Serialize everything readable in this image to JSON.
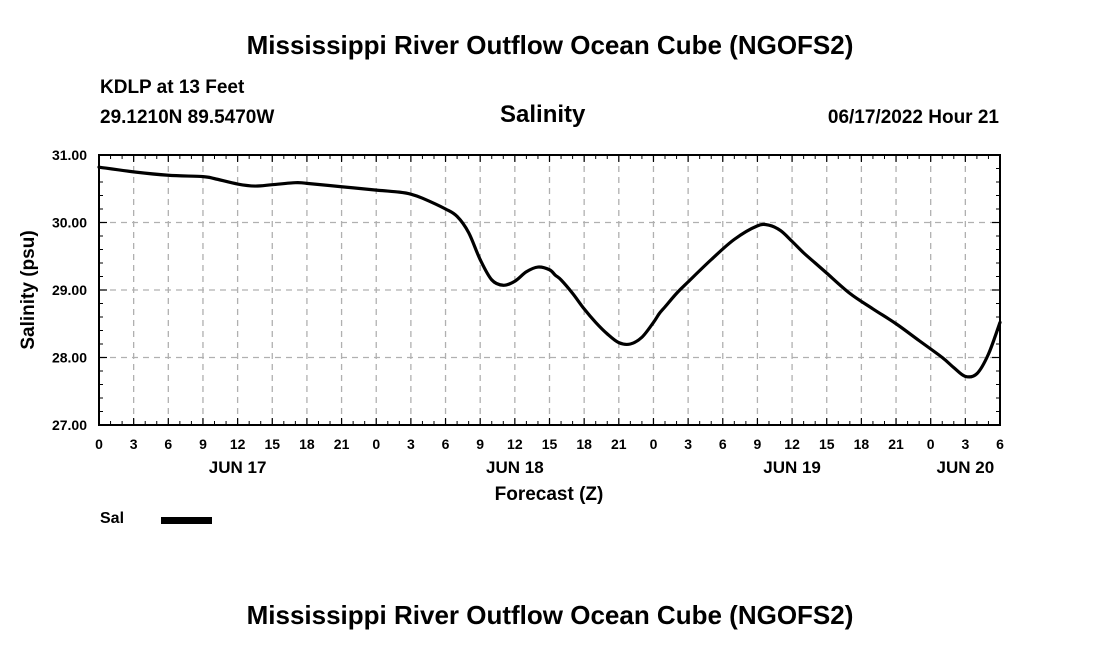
{
  "page_title": "Mississippi River Outflow Ocean Cube (NGOFS2)",
  "footer_title": "Mississippi River Outflow Ocean Cube (NGOFS2)",
  "station": "KDLP at 13 Feet",
  "coords": "29.1210N  89.5470W",
  "datetime": "06/17/2022 Hour 21",
  "chart_data": {
    "type": "line",
    "title": "Salinity",
    "xlabel": "Forecast (Z)",
    "ylabel": "Salinity (psu)",
    "ylim": [
      27.0,
      31.0
    ],
    "yticks": [
      "27.00",
      "28.00",
      "29.00",
      "30.00",
      "31.00"
    ],
    "x_unit": "hours from Jun 17 00Z",
    "xlim": [
      0,
      78
    ],
    "xtick_labels": [
      "0",
      "3",
      "6",
      "9",
      "12",
      "15",
      "18",
      "21",
      "0",
      "3",
      "6",
      "9",
      "12",
      "15",
      "18",
      "21",
      "0",
      "3",
      "6",
      "9",
      "12",
      "15",
      "18",
      "21",
      "0",
      "3",
      "6"
    ],
    "day_labels": [
      {
        "label": "JUN 17",
        "x": 12
      },
      {
        "label": "JUN 18",
        "x": 36
      },
      {
        "label": "JUN 19",
        "x": 60
      },
      {
        "label": "JUN 20",
        "x": 75
      }
    ],
    "grid": true,
    "legend": "bottom-left",
    "series": [
      {
        "name": "Sal",
        "color": "#000000",
        "x": [
          0,
          3,
          6,
          9,
          10,
          12,
          13.5,
          15,
          17,
          18,
          21,
          24,
          26,
          27,
          28,
          30,
          31,
          32,
          33,
          34,
          35,
          36,
          37,
          38,
          39,
          39.5,
          40,
          41,
          42,
          43,
          44,
          45,
          46,
          47,
          48,
          48.5,
          49,
          50,
          51,
          53,
          55,
          57,
          58,
          59,
          60,
          61,
          62,
          63,
          65,
          67,
          69,
          71,
          73,
          74,
          75,
          76,
          77,
          78
        ],
        "values": [
          30.82,
          30.75,
          30.7,
          30.68,
          30.65,
          30.57,
          30.54,
          30.56,
          30.59,
          30.58,
          30.53,
          30.48,
          30.45,
          30.42,
          30.36,
          30.2,
          30.09,
          29.85,
          29.45,
          29.15,
          29.07,
          29.13,
          29.27,
          29.34,
          29.3,
          29.22,
          29.15,
          28.95,
          28.72,
          28.52,
          28.35,
          28.22,
          28.2,
          28.3,
          28.52,
          28.65,
          28.75,
          28.95,
          29.12,
          29.45,
          29.75,
          29.95,
          29.96,
          29.88,
          29.72,
          29.55,
          29.4,
          29.25,
          28.95,
          28.72,
          28.5,
          28.25,
          28.0,
          27.85,
          27.72,
          27.76,
          28.05,
          28.52
        ]
      }
    ]
  }
}
